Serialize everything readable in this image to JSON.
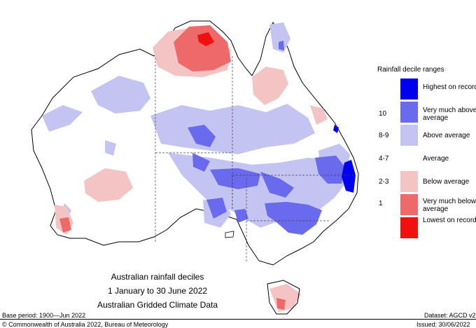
{
  "map": {
    "title_lines": [
      "Australian rainfall deciles",
      "1 January to 30 June 2022",
      "Australian Gridded Climate Data"
    ],
    "colors": {
      "highest": "#0000f0",
      "very_much_above": "#6a6aee",
      "above": "#c4c4f2",
      "average": "#ffffff",
      "below": "#f4c4c4",
      "very_much_below": "#ee6a6a",
      "lowest": "#f01010"
    }
  },
  "legend": {
    "title": "Rainfall decile ranges",
    "items": [
      {
        "code": "",
        "label": "Highest on record",
        "color": "#0000f0"
      },
      {
        "code": "10",
        "label": "Very much above average",
        "color": "#6a6aee"
      },
      {
        "code": "8-9",
        "label": "Above average",
        "color": "#c4c4f2"
      },
      {
        "code": "4-7",
        "label": "Average",
        "color": "#ffffff"
      },
      {
        "code": "2-3",
        "label": "Below average",
        "color": "#f4c4c4"
      },
      {
        "code": "1",
        "label": "Very much below average",
        "color": "#ee6a6a"
      },
      {
        "code": "",
        "label": "Lowest on record",
        "color": "#f01010"
      }
    ]
  },
  "footer": {
    "base_period": "Base period: 1900—Jun 2022",
    "dataset": "Dataset: AGCD v2",
    "copyright": "© Commonwealth of Australia 2022, Bureau of Meteorology",
    "issued": "Issued: 30/06/2022"
  }
}
